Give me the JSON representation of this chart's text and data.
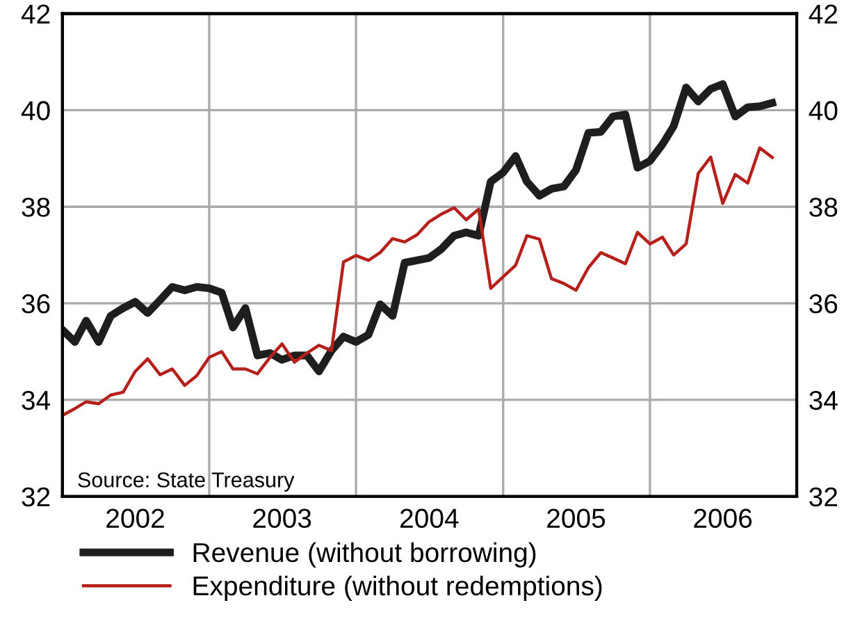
{
  "chart_data": {
    "type": "line",
    "x": [
      "2002-01",
      "2002-02",
      "2002-03",
      "2002-04",
      "2002-05",
      "2002-06",
      "2002-07",
      "2002-08",
      "2002-09",
      "2002-10",
      "2002-11",
      "2002-12",
      "2003-01",
      "2003-02",
      "2003-03",
      "2003-04",
      "2003-05",
      "2003-06",
      "2003-07",
      "2003-08",
      "2003-09",
      "2003-10",
      "2003-11",
      "2003-12",
      "2004-01",
      "2004-02",
      "2004-03",
      "2004-04",
      "2004-05",
      "2004-06",
      "2004-07",
      "2004-08",
      "2004-09",
      "2004-10",
      "2004-11",
      "2004-12",
      "2005-01",
      "2005-02",
      "2005-03",
      "2005-04",
      "2005-05",
      "2005-06",
      "2005-07",
      "2005-08",
      "2005-09",
      "2005-10",
      "2005-11",
      "2005-12",
      "2006-01",
      "2006-02",
      "2006-03",
      "2006-04",
      "2006-05",
      "2006-06",
      "2006-07",
      "2006-08",
      "2006-09",
      "2006-10",
      "2006-11"
    ],
    "series": [
      {
        "name": "Revenue (without borrowing)",
        "color": "#1e1e1e",
        "values": [
          35.45,
          35.2,
          35.64,
          35.2,
          35.74,
          35.9,
          36.03,
          35.8,
          36.07,
          36.34,
          36.27,
          36.34,
          36.31,
          36.22,
          35.5,
          35.9,
          34.92,
          34.97,
          34.83,
          34.92,
          34.92,
          34.59,
          35.02,
          35.31,
          35.2,
          35.35,
          35.98,
          35.74,
          36.84,
          36.89,
          36.94,
          37.13,
          37.4,
          37.47,
          37.4,
          38.52,
          38.71,
          39.05,
          38.52,
          38.23,
          38.37,
          38.42,
          38.76,
          39.53,
          39.55,
          39.87,
          39.91,
          38.81,
          38.95,
          39.29,
          39.67,
          40.47,
          40.18,
          40.44,
          40.54,
          39.87,
          40.06,
          40.08,
          40.15
        ]
      },
      {
        "name": "Expenditure (without redemptions)",
        "color": "#b5201a",
        "values": [
          33.68,
          33.82,
          33.96,
          33.92,
          34.1,
          34.16,
          34.59,
          34.85,
          34.52,
          34.64,
          34.3,
          34.5,
          34.88,
          35.0,
          34.64,
          34.64,
          34.54,
          34.88,
          35.16,
          34.78,
          34.97,
          35.13,
          35.02,
          36.86,
          36.99,
          36.89,
          37.05,
          37.34,
          37.27,
          37.42,
          37.69,
          37.85,
          37.98,
          37.73,
          37.95,
          36.31,
          36.55,
          36.79,
          37.4,
          37.33,
          36.51,
          36.41,
          36.27,
          36.74,
          37.05,
          36.94,
          36.82,
          37.47,
          37.23,
          37.37,
          37.0,
          37.23,
          38.69,
          39.03,
          38.07,
          38.67,
          38.49,
          39.22,
          39.02
        ]
      }
    ],
    "xlim": [
      "2002-01",
      "2007-01"
    ],
    "xticks": [
      {
        "value": "2002-07",
        "label": "2002"
      },
      {
        "value": "2003-01",
        "label": null
      },
      {
        "value": "2003-07",
        "label": "2003"
      },
      {
        "value": "2004-01",
        "label": null
      },
      {
        "value": "2004-07",
        "label": "2004"
      },
      {
        "value": "2005-01",
        "label": null
      },
      {
        "value": "2005-07",
        "label": "2005"
      },
      {
        "value": "2006-01",
        "label": null
      },
      {
        "value": "2006-07",
        "label": "2006"
      }
    ],
    "ylim": [
      32,
      42
    ],
    "yticks": [
      32,
      34,
      36,
      38,
      40,
      42
    ],
    "y2lim": [
      32,
      42
    ],
    "y2ticks": [
      32,
      34,
      36,
      38,
      40,
      42
    ],
    "annotations": [
      "Source: State Treasury"
    ],
    "grid": true,
    "legend": "bottom",
    "marker": "none",
    "line_style": "solid"
  }
}
